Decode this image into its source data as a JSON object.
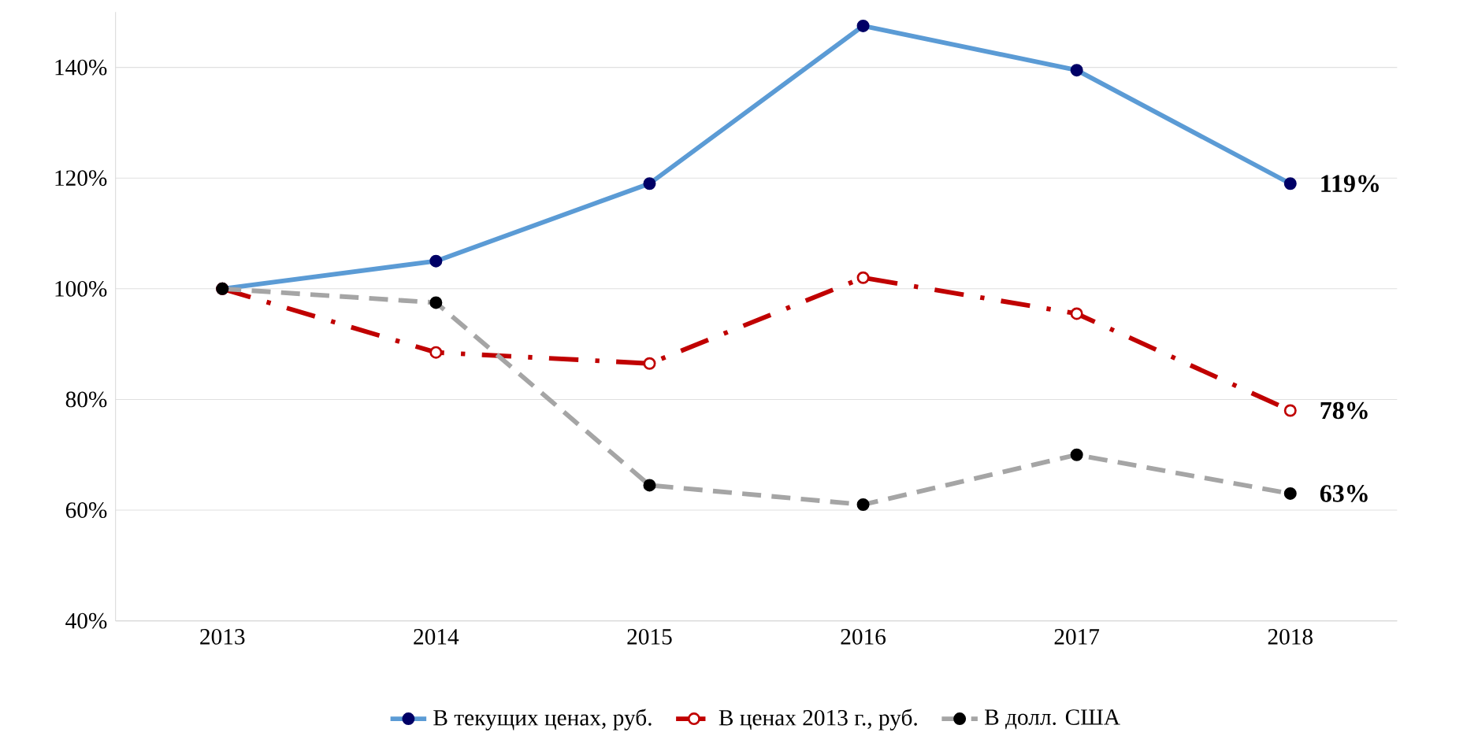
{
  "chart_data": {
    "type": "line",
    "categories": [
      "2013",
      "2014",
      "2015",
      "2016",
      "2017",
      "2018"
    ],
    "series": [
      {
        "name": "В текущих ценах, руб.",
        "color": "#5b9bd5",
        "marker": "circle",
        "line_style": "solid",
        "values": [
          100,
          105,
          119,
          147.5,
          139.5,
          119
        ],
        "value_labels": [
          null,
          null,
          null,
          null,
          null,
          "119%"
        ]
      },
      {
        "name": "В ценах 2013 г., руб.",
        "color": "#c00000",
        "marker": "circle",
        "line_style": "dashdot",
        "values": [
          100,
          88.5,
          86.5,
          102,
          95.5,
          78
        ],
        "value_labels": [
          null,
          null,
          null,
          null,
          null,
          "78%"
        ]
      },
      {
        "name": "В долл. США",
        "color": "#a5a5a5",
        "marker": "circle",
        "line_style": "dashed",
        "values": [
          100,
          97.5,
          64.5,
          61,
          70,
          63
        ],
        "value_labels": [
          null,
          null,
          null,
          null,
          null,
          "63%"
        ]
      }
    ],
    "ylim": [
      40,
      150
    ],
    "yticks": [
      {
        "value": 40,
        "label": "40%"
      },
      {
        "value": 60,
        "label": "60%"
      },
      {
        "value": 80,
        "label": "80%"
      },
      {
        "value": 100,
        "label": "100%"
      },
      {
        "value": 120,
        "label": "120%"
      },
      {
        "value": 140,
        "label": "140%"
      }
    ],
    "grid": "y",
    "legend": "bottom"
  }
}
